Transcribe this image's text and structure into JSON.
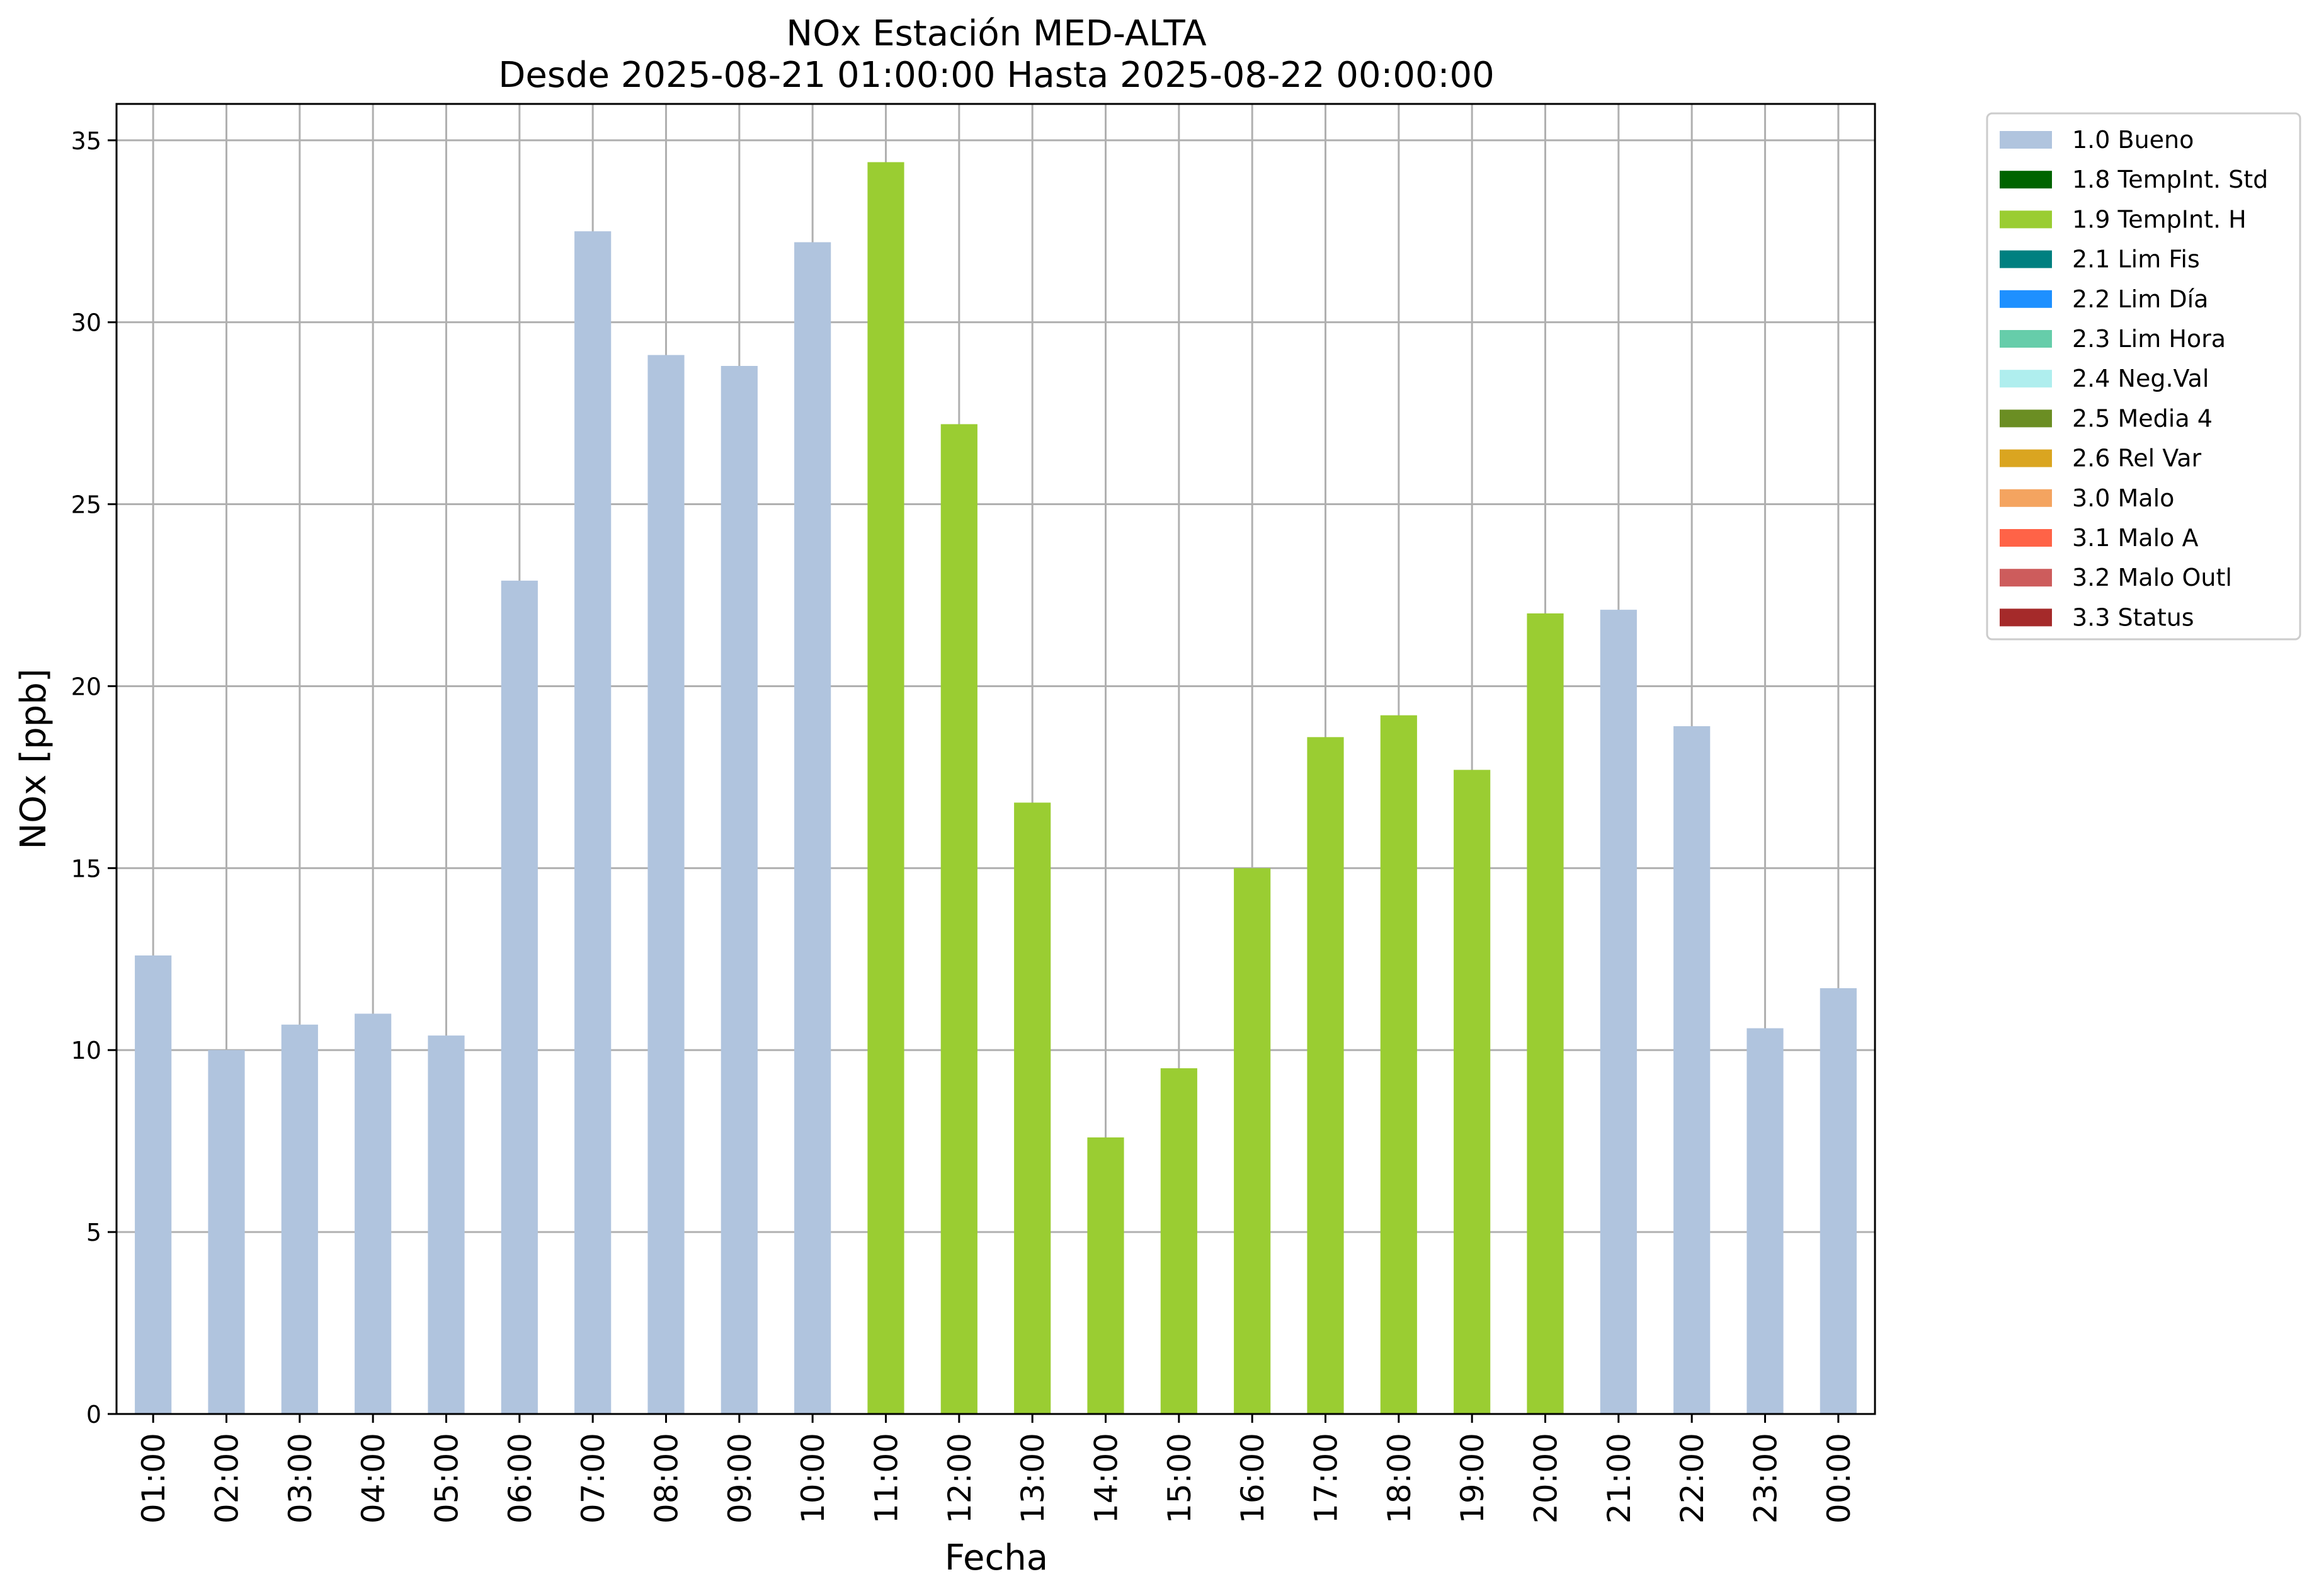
{
  "chart_data": {
    "type": "bar",
    "title": "NOx Estación MED-ALTA",
    "subtitle": "Desde 2025-08-21 01:00:00 Hasta 2025-08-22 00:00:00",
    "xlabel": "Fecha",
    "ylabel": "NOx [ppb]",
    "ylim": [
      0,
      36
    ],
    "yticks": [
      "0",
      "5",
      "10",
      "15",
      "20",
      "25",
      "30",
      "35"
    ],
    "grid": true,
    "legend_position": "outside-top-right",
    "categories": [
      "01:00",
      "02:00",
      "03:00",
      "04:00",
      "05:00",
      "06:00",
      "07:00",
      "08:00",
      "09:00",
      "10:00",
      "11:00",
      "12:00",
      "13:00",
      "14:00",
      "15:00",
      "16:00",
      "17:00",
      "18:00",
      "19:00",
      "20:00",
      "21:00",
      "22:00",
      "23:00",
      "00:00"
    ],
    "values": [
      12.6,
      10.0,
      10.7,
      11.0,
      10.4,
      22.9,
      32.5,
      29.1,
      28.8,
      32.2,
      34.4,
      27.2,
      16.8,
      7.6,
      9.5,
      15.0,
      18.6,
      19.2,
      17.7,
      22.0,
      22.1,
      18.9,
      10.6,
      11.7
    ],
    "flags": [
      "1.0 Bueno",
      "1.0 Bueno",
      "1.0 Bueno",
      "1.0 Bueno",
      "1.0 Bueno",
      "1.0 Bueno",
      "1.0 Bueno",
      "1.0 Bueno",
      "1.0 Bueno",
      "1.0 Bueno",
      "1.9 TempInt. H",
      "1.9 TempInt. H",
      "1.9 TempInt. H",
      "1.9 TempInt. H",
      "1.9 TempInt. H",
      "1.9 TempInt. H",
      "1.9 TempInt. H",
      "1.9 TempInt. H",
      "1.9 TempInt. H",
      "1.9 TempInt. H",
      "1.0 Bueno",
      "1.0 Bueno",
      "1.0 Bueno",
      "1.0 Bueno"
    ],
    "legend": [
      {
        "label": "1.0 Bueno",
        "color": "#b0c4de"
      },
      {
        "label": "1.8 TempInt. Std",
        "color": "#006400"
      },
      {
        "label": "1.9 TempInt. H",
        "color": "#9acd32"
      },
      {
        "label": "2.1 Lim Fis",
        "color": "#008080"
      },
      {
        "label": "2.2 Lim Día",
        "color": "#1e90ff"
      },
      {
        "label": "2.3 Lim Hora",
        "color": "#66cdaa"
      },
      {
        "label": "2.4 Neg.Val",
        "color": "#afeeee"
      },
      {
        "label": "2.5 Media 4",
        "color": "#6b8e23"
      },
      {
        "label": "2.6 Rel Var",
        "color": "#daa520"
      },
      {
        "label": "3.0 Malo",
        "color": "#f4a460"
      },
      {
        "label": "3.1 Malo A",
        "color": "#ff6347"
      },
      {
        "label": "3.2 Malo Outl",
        "color": "#cd5c5c"
      },
      {
        "label": "3.3 Status",
        "color": "#a52a2a"
      }
    ]
  }
}
